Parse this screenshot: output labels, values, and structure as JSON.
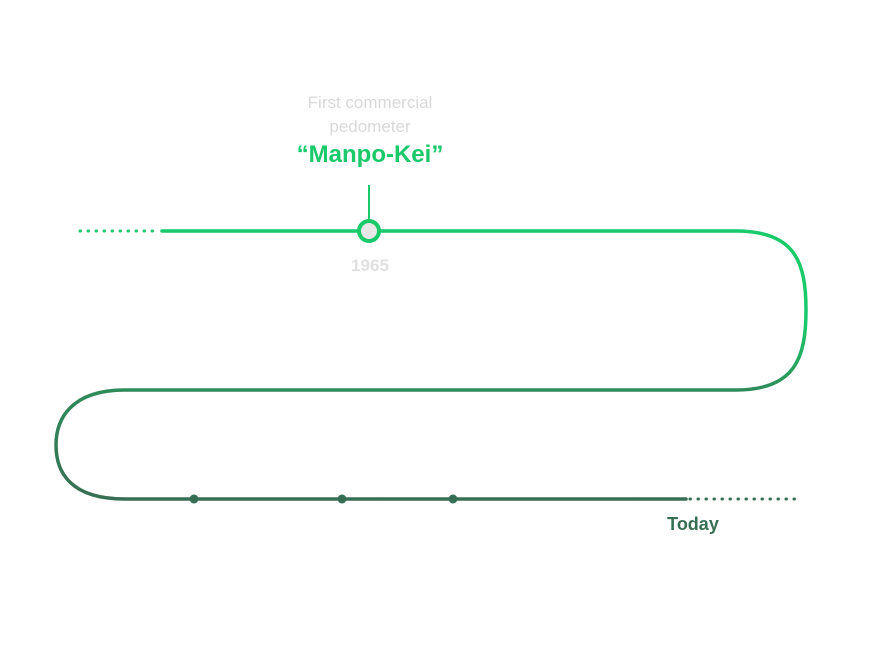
{
  "event": {
    "caption_line1": "First commercial",
    "caption_line2": "pedometer",
    "headline": "“Manpo-Kei”",
    "year": "1965"
  },
  "end_label": "Today",
  "colors": {
    "accent_green": "#19c96a",
    "dark_green": "#376f54",
    "muted_text": "#d9d9d9",
    "marker_fill": "#e8e8e8"
  }
}
